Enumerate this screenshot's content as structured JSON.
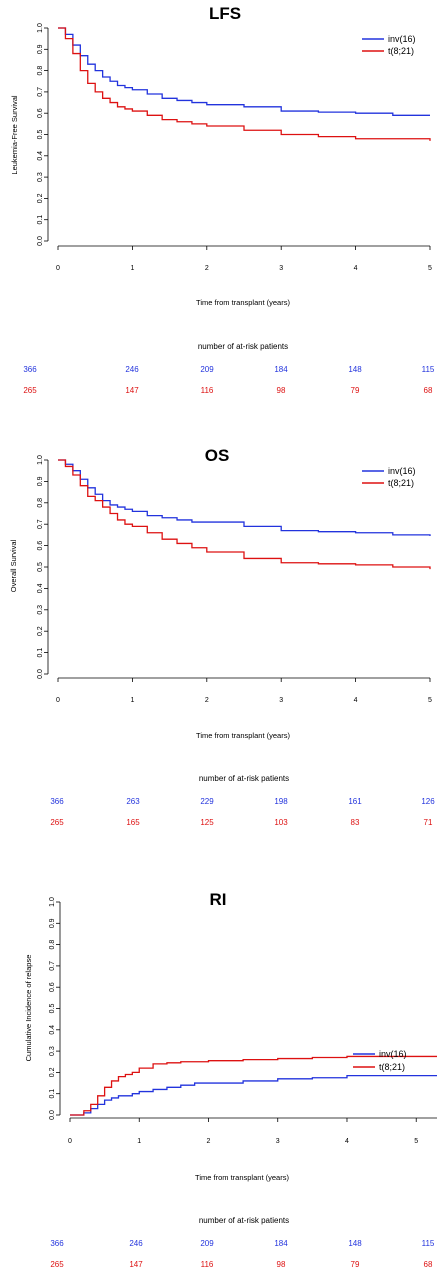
{
  "colors": {
    "inv16": "#2233dd",
    "t821": "#dd1111"
  },
  "chart_data": [
    {
      "type": "line",
      "title": "LFS",
      "xlabel": "Time from transplant (years)",
      "ylabel": "Leukemia-Free Survival",
      "xlim": [
        0,
        5
      ],
      "ylim": [
        0,
        1
      ],
      "xticks": [
        "0",
        "1",
        "2",
        "3",
        "4",
        "5"
      ],
      "yticks": [
        "0.0",
        "0.1",
        "0.2",
        "0.3",
        "0.4",
        "0.5",
        "0.6",
        "0.7",
        "0.8",
        "0.9",
        "1.0"
      ],
      "legend_position": "top-right",
      "series": [
        {
          "name": "inv(16)",
          "color": "#2233dd",
          "x": [
            0,
            0.1,
            0.2,
            0.3,
            0.4,
            0.5,
            0.6,
            0.7,
            0.8,
            0.9,
            1.0,
            1.2,
            1.4,
            1.6,
            1.8,
            2.0,
            2.5,
            3.0,
            3.5,
            4.0,
            4.5,
            5.0
          ],
          "y": [
            1.0,
            0.97,
            0.92,
            0.87,
            0.83,
            0.8,
            0.77,
            0.75,
            0.73,
            0.72,
            0.71,
            0.69,
            0.67,
            0.66,
            0.65,
            0.64,
            0.63,
            0.61,
            0.605,
            0.6,
            0.59,
            0.59
          ]
        },
        {
          "name": "t(8;21)",
          "color": "#dd1111",
          "x": [
            0,
            0.1,
            0.2,
            0.3,
            0.4,
            0.5,
            0.6,
            0.7,
            0.8,
            0.9,
            1.0,
            1.2,
            1.4,
            1.6,
            1.8,
            2.0,
            2.5,
            3.0,
            3.5,
            4.0,
            4.5,
            5.0
          ],
          "y": [
            1.0,
            0.95,
            0.88,
            0.8,
            0.74,
            0.7,
            0.67,
            0.65,
            0.63,
            0.62,
            0.61,
            0.59,
            0.57,
            0.56,
            0.55,
            0.54,
            0.52,
            0.5,
            0.49,
            0.48,
            0.48,
            0.47
          ]
        }
      ],
      "risk_table": {
        "heading": "number of at-risk patients",
        "rows": [
          {
            "name": "inv(16)",
            "values": [
              "366",
              "246",
              "209",
              "184",
              "148",
              "115"
            ]
          },
          {
            "name": "t(8;21)",
            "values": [
              "265",
              "147",
              "116",
              "98",
              "79",
              "68"
            ]
          }
        ]
      }
    },
    {
      "type": "line",
      "title": "OS",
      "xlabel": "Time from transplant (years)",
      "ylabel": "Overall Survival",
      "xlim": [
        0,
        5
      ],
      "ylim": [
        0,
        1
      ],
      "xticks": [
        "0",
        "1",
        "2",
        "3",
        "4",
        "5"
      ],
      "yticks": [
        "0.0",
        "0.1",
        "0.2",
        "0.3",
        "0.4",
        "0.5",
        "0.6",
        "0.7",
        "0.8",
        "0.9",
        "1.0"
      ],
      "legend_position": "top-right",
      "series": [
        {
          "name": "inv(16)",
          "color": "#2233dd",
          "x": [
            0,
            0.1,
            0.2,
            0.3,
            0.4,
            0.5,
            0.6,
            0.7,
            0.8,
            0.9,
            1.0,
            1.2,
            1.4,
            1.6,
            1.8,
            2.0,
            2.5,
            3.0,
            3.5,
            4.0,
            4.5,
            5.0
          ],
          "y": [
            1.0,
            0.98,
            0.95,
            0.91,
            0.87,
            0.84,
            0.81,
            0.79,
            0.78,
            0.77,
            0.76,
            0.74,
            0.73,
            0.72,
            0.71,
            0.71,
            0.69,
            0.67,
            0.665,
            0.66,
            0.65,
            0.645
          ]
        },
        {
          "name": "t(8;21)",
          "color": "#dd1111",
          "x": [
            0,
            0.1,
            0.2,
            0.3,
            0.4,
            0.5,
            0.6,
            0.7,
            0.8,
            0.9,
            1.0,
            1.2,
            1.4,
            1.6,
            1.8,
            2.0,
            2.5,
            3.0,
            3.5,
            4.0,
            4.5,
            5.0
          ],
          "y": [
            1.0,
            0.97,
            0.93,
            0.88,
            0.83,
            0.81,
            0.78,
            0.75,
            0.72,
            0.7,
            0.69,
            0.66,
            0.63,
            0.61,
            0.59,
            0.57,
            0.54,
            0.52,
            0.515,
            0.51,
            0.5,
            0.49
          ]
        }
      ],
      "risk_table": {
        "heading": "number of at-risk patients",
        "rows": [
          {
            "name": "inv(16)",
            "values": [
              "366",
              "263",
              "229",
              "198",
              "161",
              "126"
            ]
          },
          {
            "name": "t(8;21)",
            "values": [
              "265",
              "165",
              "125",
              "103",
              "83",
              "71"
            ]
          }
        ]
      }
    },
    {
      "type": "line",
      "title": "RI",
      "xlabel": "Time from transplant (years)",
      "ylabel": "Cumulative Incidence of relapse",
      "xlim": [
        0,
        5
      ],
      "ylim": [
        0,
        1
      ],
      "xticks": [
        "0",
        "1",
        "2",
        "3",
        "4",
        "5"
      ],
      "yticks": [
        "0.0",
        "0.1",
        "0.2",
        "0.3",
        "0.4",
        "0.5",
        "0.6",
        "0.7",
        "0.8",
        "0.9",
        "1.0"
      ],
      "legend_position": "right",
      "series": [
        {
          "name": "inv(16)",
          "color": "#2233dd",
          "x": [
            0,
            0.1,
            0.2,
            0.3,
            0.4,
            0.5,
            0.6,
            0.7,
            0.8,
            0.9,
            1.0,
            1.2,
            1.4,
            1.6,
            1.8,
            2.0,
            2.5,
            3.0,
            3.5,
            4.0,
            4.5,
            5.0,
            5.3
          ],
          "y": [
            0.0,
            0.0,
            0.01,
            0.03,
            0.05,
            0.07,
            0.08,
            0.09,
            0.09,
            0.1,
            0.11,
            0.12,
            0.13,
            0.14,
            0.15,
            0.15,
            0.16,
            0.17,
            0.175,
            0.185,
            0.185,
            0.185,
            0.185
          ]
        },
        {
          "name": "t(8;21)",
          "color": "#dd1111",
          "x": [
            0,
            0.1,
            0.2,
            0.3,
            0.4,
            0.5,
            0.6,
            0.7,
            0.8,
            0.9,
            1.0,
            1.2,
            1.4,
            1.6,
            1.8,
            2.0,
            2.5,
            3.0,
            3.5,
            4.0,
            4.5,
            5.0,
            5.3
          ],
          "y": [
            0.0,
            0.0,
            0.02,
            0.05,
            0.09,
            0.13,
            0.16,
            0.18,
            0.19,
            0.2,
            0.22,
            0.24,
            0.245,
            0.25,
            0.25,
            0.255,
            0.26,
            0.265,
            0.27,
            0.275,
            0.275,
            0.275,
            0.275
          ]
        }
      ],
      "risk_table": {
        "heading": "number of at-risk patients",
        "rows": [
          {
            "name": "inv(16)",
            "values": [
              "366",
              "246",
              "209",
              "184",
              "148",
              "115"
            ]
          },
          {
            "name": "t(8;21)",
            "values": [
              "265",
              "147",
              "116",
              "98",
              "79",
              "68"
            ]
          }
        ]
      }
    }
  ]
}
